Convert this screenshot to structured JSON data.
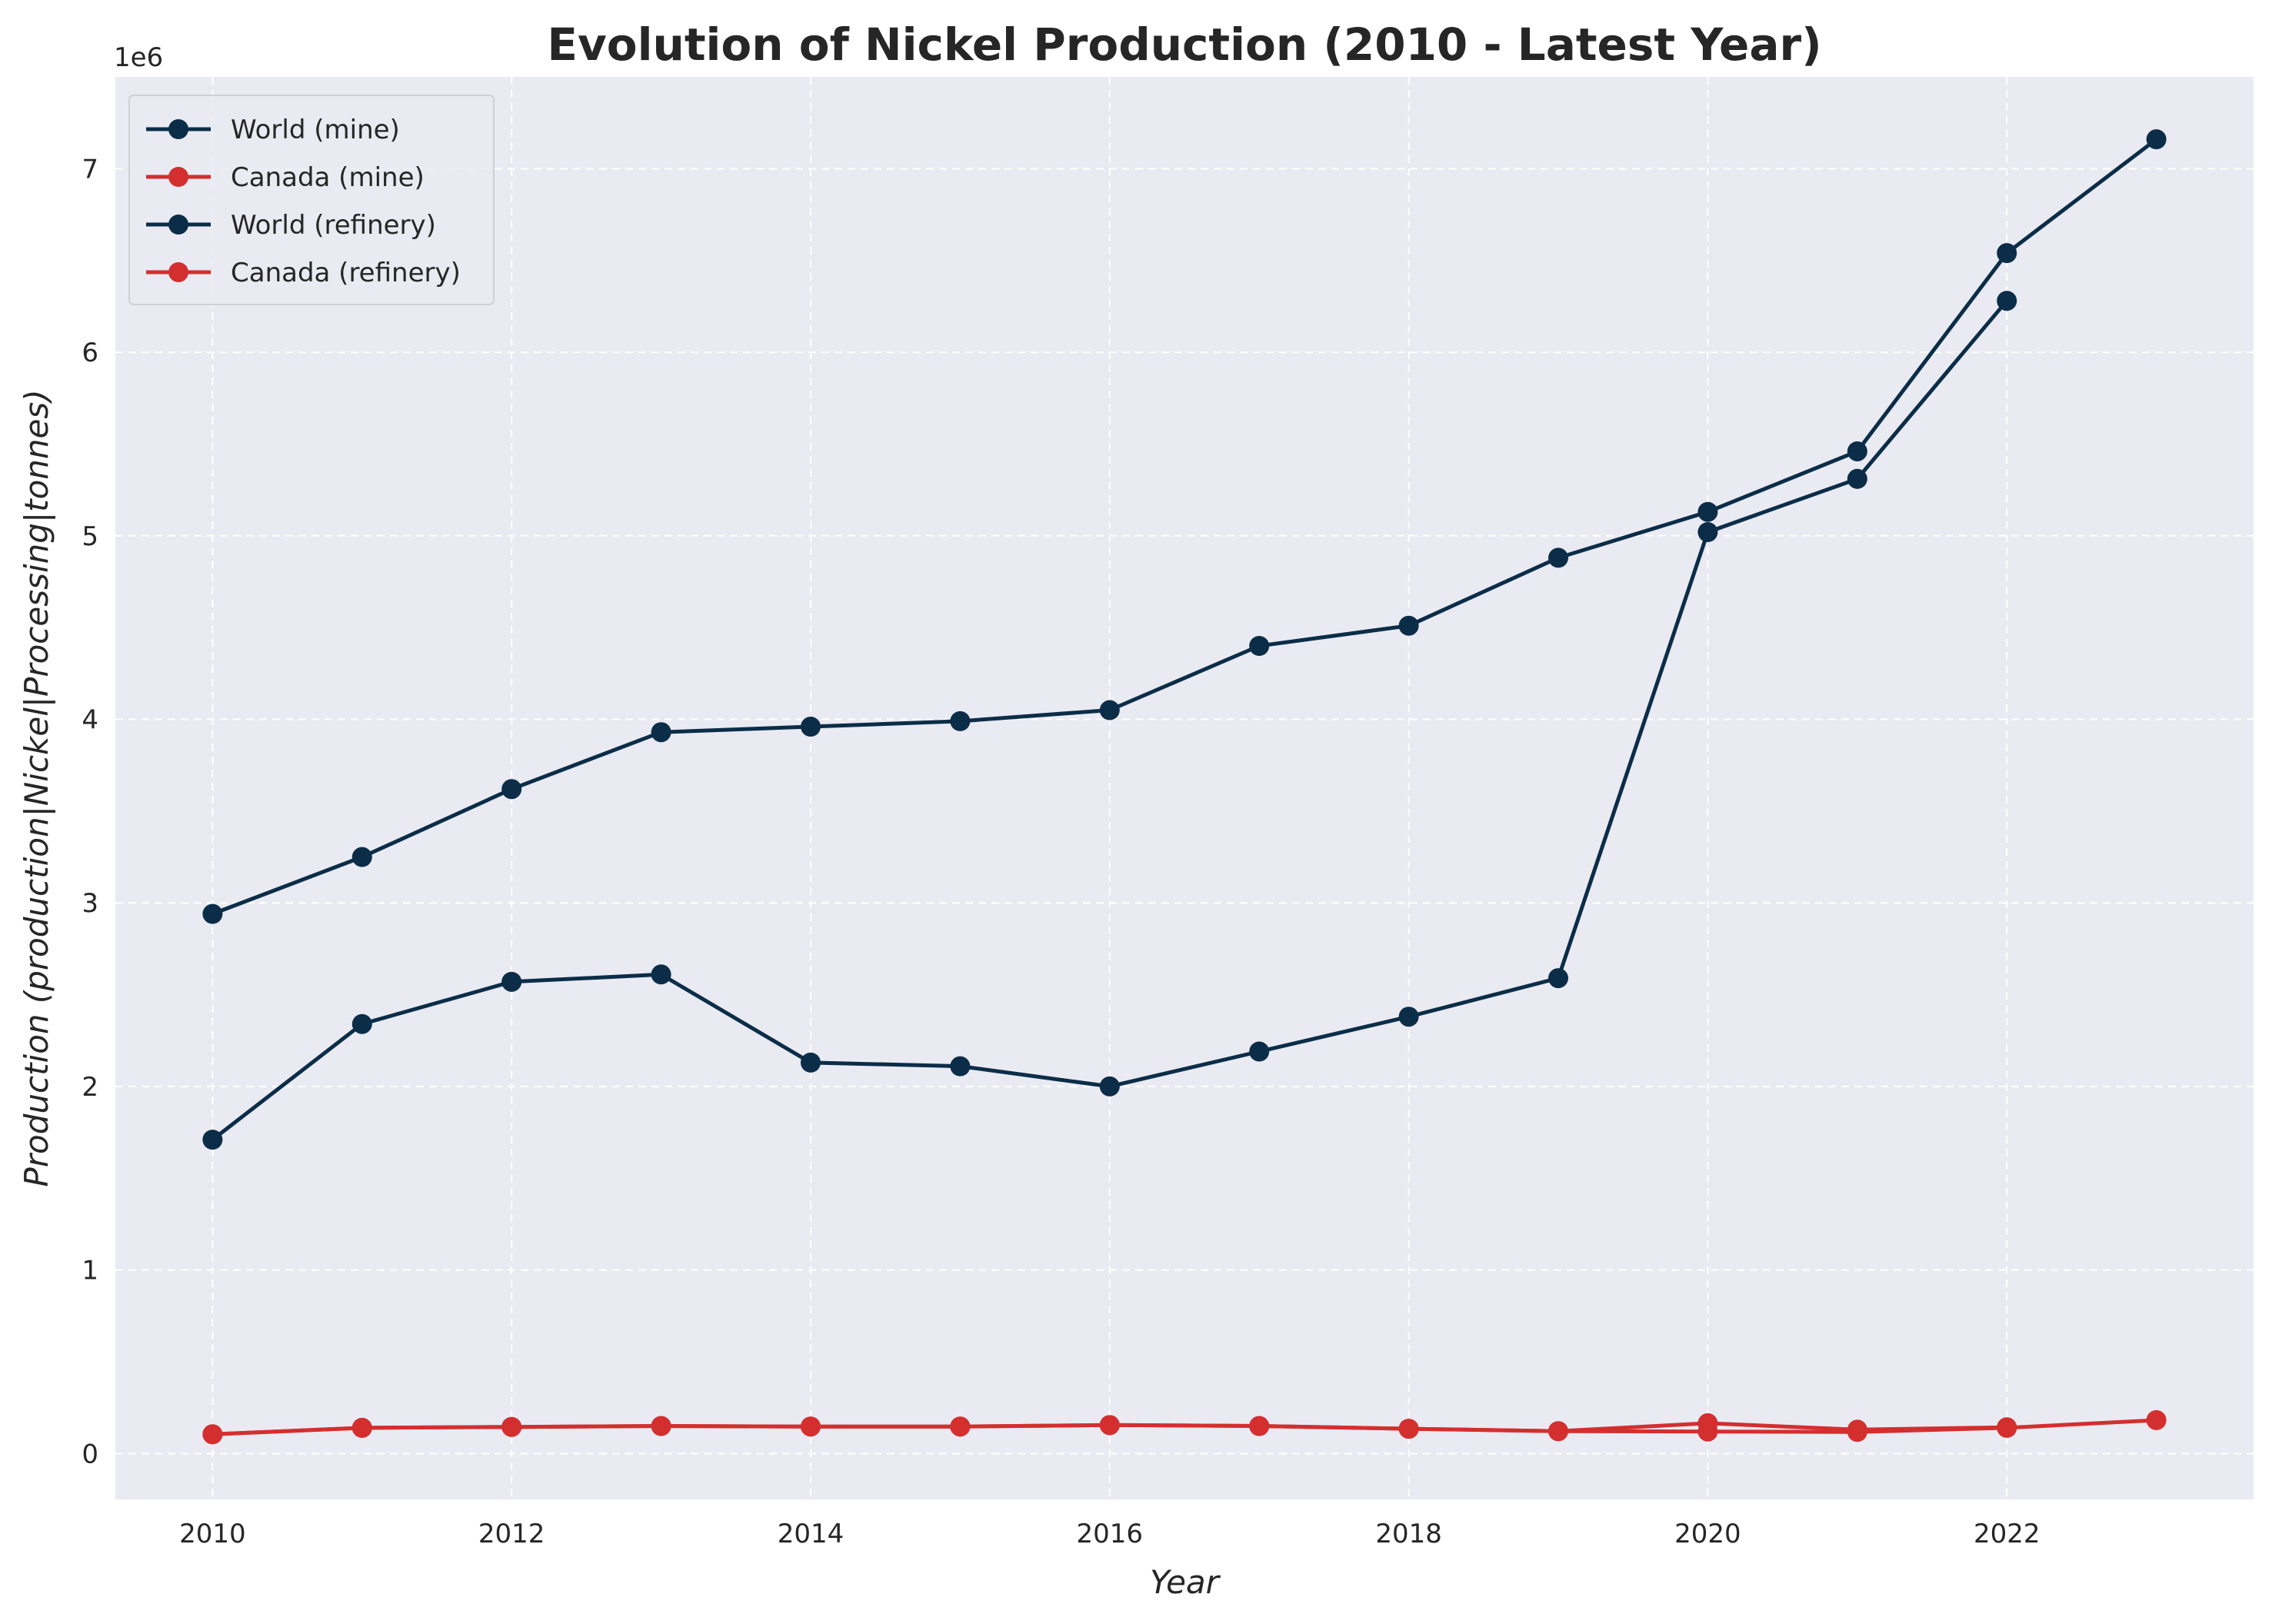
{
  "chart_data": {
    "type": "line",
    "title": "Evolution of Nickel Production (2010 - Latest Year)",
    "xlabel": "Year",
    "ylabel": "Production (production|Nickel|Processing|tonnes)",
    "y_offset_label": "1e6",
    "xlim": [
      2009.35,
      2023.65
    ],
    "ylim": [
      -250000,
      7500000
    ],
    "x_ticks": [
      2010,
      2012,
      2014,
      2016,
      2018,
      2020,
      2022
    ],
    "x_tick_labels": [
      "2010",
      "2012",
      "2014",
      "2016",
      "2018",
      "2020",
      "2022"
    ],
    "y_ticks": [
      0,
      1000000,
      2000000,
      3000000,
      4000000,
      5000000,
      6000000,
      7000000
    ],
    "y_tick_labels": [
      "0",
      "1",
      "2",
      "3",
      "4",
      "5",
      "6",
      "7"
    ],
    "grid": true,
    "legend_position": "top-left",
    "colors": {
      "background": "#EAEAF2",
      "grid": "#FFFFFF",
      "world": "#0B2D48",
      "canada": "#D32F2F",
      "text": "#262626"
    },
    "series": [
      {
        "name": "World (mine)",
        "color": "#0B2D48",
        "x": [
          2010,
          2011,
          2012,
          2013,
          2014,
          2015,
          2016,
          2017,
          2018,
          2019,
          2020,
          2021,
          2022
        ],
        "y": [
          1710000,
          2340000,
          2570000,
          2610000,
          2130000,
          2110000,
          2000000,
          2190000,
          2380000,
          2590000,
          5020000,
          5310000,
          6280000
        ]
      },
      {
        "name": "Canada (mine)",
        "color": "#D32F2F",
        "x": [
          2010,
          2011,
          2012,
          2013,
          2014,
          2015,
          2016,
          2017,
          2018,
          2019,
          2020,
          2021,
          2022
        ],
        "y": [
          105000,
          140000,
          145000,
          150000,
          147000,
          147000,
          155000,
          150000,
          135000,
          122000,
          165000,
          130000,
          143000
        ]
      },
      {
        "name": "World (refinery)",
        "color": "#0B2D48",
        "x": [
          2010,
          2011,
          2012,
          2013,
          2014,
          2015,
          2016,
          2017,
          2018,
          2019,
          2020,
          2021,
          2022,
          2023
        ],
        "y": [
          2940000,
          3250000,
          3620000,
          3930000,
          3960000,
          3990000,
          4050000,
          4400000,
          4510000,
          4880000,
          5130000,
          5460000,
          6540000,
          7160000
        ]
      },
      {
        "name": "Canada (refinery)",
        "color": "#D32F2F",
        "x": [
          2010,
          2011,
          2012,
          2013,
          2014,
          2015,
          2016,
          2017,
          2018,
          2019,
          2020,
          2021,
          2022,
          2023
        ],
        "y": [
          105000,
          140000,
          145000,
          150000,
          147000,
          147000,
          155000,
          150000,
          135000,
          122000,
          120000,
          118000,
          140000,
          182000
        ]
      }
    ]
  }
}
